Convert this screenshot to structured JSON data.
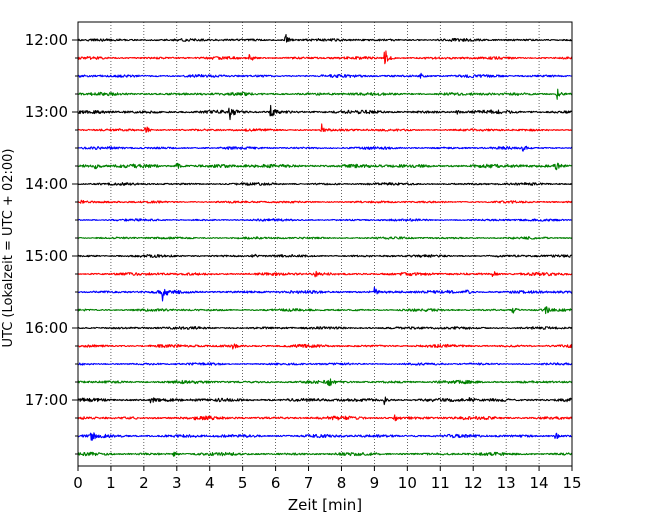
{
  "chart_data": {
    "type": "line",
    "xlabel": "Zeit  [min]",
    "ylabel": "UTC (Lokalzeit = UTC + 02:00)",
    "xlim": [
      0,
      15
    ],
    "x_ticks": [
      0,
      1,
      2,
      3,
      4,
      5,
      6,
      7,
      8,
      9,
      10,
      11,
      12,
      13,
      14,
      15
    ],
    "x_tick_labels": [
      "0",
      "1",
      "2",
      "3",
      "4",
      "5",
      "6",
      "7",
      "8",
      "9",
      "10",
      "11",
      "12",
      "13",
      "14",
      "15"
    ],
    "y_axis": "time of day, one trace per 15 minutes, later times lower",
    "y_tick_labels": [
      "12:00",
      "13:00",
      "14:00",
      "15:00",
      "16:00",
      "17:00"
    ],
    "y_tick_rows": [
      0,
      4,
      8,
      12,
      16,
      20
    ],
    "y_minor_tick_rows": [
      0,
      1,
      2,
      3,
      4,
      5,
      6,
      7,
      8,
      9,
      10,
      11,
      12,
      13,
      14,
      15,
      16,
      17,
      18,
      19,
      20,
      21,
      22,
      23
    ],
    "grid": {
      "vertical": true,
      "horizontal": false,
      "style": "dotted"
    },
    "trace_interval_min": 15,
    "color_cycle": [
      "#000000",
      "#ff0000",
      "#0000ff",
      "#008000"
    ],
    "series": [
      {
        "start": "12:00",
        "color": "#000000",
        "noise": 1.6,
        "events": [
          {
            "t": 6.3,
            "amp": 7
          }
        ]
      },
      {
        "start": "12:15",
        "color": "#ff0000",
        "noise": 1.6,
        "events": [
          {
            "t": 5.2,
            "amp": 6
          },
          {
            "t": 9.3,
            "amp": 13
          }
        ]
      },
      {
        "start": "12:30",
        "color": "#0000ff",
        "noise": 1.7,
        "events": [
          {
            "t": 10.4,
            "amp": 3
          }
        ]
      },
      {
        "start": "12:45",
        "color": "#008000",
        "noise": 1.8,
        "events": [
          {
            "t": 14.55,
            "amp": 8
          }
        ]
      },
      {
        "start": "13:00",
        "color": "#000000",
        "noise": 2.0,
        "events": [
          {
            "t": 4.6,
            "amp": 8
          },
          {
            "t": 5.85,
            "amp": 7
          },
          {
            "t": 11.5,
            "amp": 3
          }
        ]
      },
      {
        "start": "13:15",
        "color": "#ff0000",
        "noise": 1.4,
        "events": [
          {
            "t": 2.05,
            "amp": 5
          },
          {
            "t": 7.4,
            "amp": 6
          }
        ]
      },
      {
        "start": "13:30",
        "color": "#0000ff",
        "noise": 1.5,
        "events": [
          {
            "t": 13.5,
            "amp": 3
          }
        ]
      },
      {
        "start": "13:45",
        "color": "#008000",
        "noise": 2.2,
        "events": [
          {
            "t": 0.5,
            "amp": 4
          },
          {
            "t": 3.0,
            "amp": 4
          },
          {
            "t": 14.5,
            "amp": 4
          }
        ]
      },
      {
        "start": "14:00",
        "color": "#000000",
        "noise": 1.5,
        "events": []
      },
      {
        "start": "14:15",
        "color": "#ff0000",
        "noise": 1.3,
        "events": [
          {
            "t": 0.1,
            "amp": 3
          }
        ]
      },
      {
        "start": "14:30",
        "color": "#0000ff",
        "noise": 1.3,
        "events": []
      },
      {
        "start": "14:45",
        "color": "#008000",
        "noise": 1.3,
        "events": []
      },
      {
        "start": "15:00",
        "color": "#000000",
        "noise": 1.5,
        "events": [
          {
            "t": 5.3,
            "amp": 3
          }
        ]
      },
      {
        "start": "15:15",
        "color": "#ff0000",
        "noise": 1.8,
        "events": [
          {
            "t": 7.2,
            "amp": 3
          },
          {
            "t": 12.6,
            "amp": 4
          }
        ]
      },
      {
        "start": "15:30",
        "color": "#0000ff",
        "noise": 1.9,
        "events": [
          {
            "t": 2.55,
            "amp": 9
          },
          {
            "t": 9.0,
            "amp": 4
          },
          {
            "t": 11.8,
            "amp": 3
          }
        ]
      },
      {
        "start": "15:45",
        "color": "#008000",
        "noise": 1.5,
        "events": [
          {
            "t": 13.2,
            "amp": 4
          },
          {
            "t": 14.2,
            "amp": 4
          }
        ]
      },
      {
        "start": "16:00",
        "color": "#000000",
        "noise": 1.6,
        "events": []
      },
      {
        "start": "16:15",
        "color": "#ff0000",
        "noise": 1.7,
        "events": [
          {
            "t": 4.7,
            "amp": 3
          }
        ]
      },
      {
        "start": "16:30",
        "color": "#0000ff",
        "noise": 1.4,
        "events": []
      },
      {
        "start": "16:45",
        "color": "#008000",
        "noise": 1.8,
        "events": [
          {
            "t": 7.6,
            "amp": 4
          }
        ]
      },
      {
        "start": "17:00",
        "color": "#000000",
        "noise": 2.0,
        "events": [
          {
            "t": 2.2,
            "amp": 4
          },
          {
            "t": 9.3,
            "amp": 4
          },
          {
            "t": 11.9,
            "amp": 4
          }
        ]
      },
      {
        "start": "17:15",
        "color": "#ff0000",
        "noise": 2.0,
        "events": [
          {
            "t": 9.6,
            "amp": 5
          }
        ]
      },
      {
        "start": "17:30",
        "color": "#0000ff",
        "noise": 1.9,
        "events": [
          {
            "t": 0.4,
            "amp": 5
          },
          {
            "t": 14.5,
            "amp": 4
          }
        ]
      },
      {
        "start": "17:45",
        "color": "#008000",
        "noise": 1.8,
        "events": [
          {
            "t": 2.9,
            "amp": 3
          }
        ]
      }
    ]
  }
}
